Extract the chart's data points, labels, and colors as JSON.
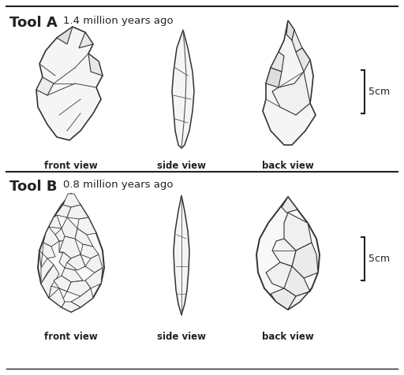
{
  "background_color": "#ffffff",
  "title_a": "Tool A",
  "subtitle_a": "1.4 million years ago",
  "title_b": "Tool B",
  "subtitle_b": "0.8 million years ago",
  "label_front": "front view",
  "label_side": "side view",
  "label_back": "back view",
  "scale_label": "5cm",
  "title_fontsize": 13,
  "subtitle_fontsize": 9.5,
  "label_fontsize": 8.5,
  "divider_color": "#222222",
  "text_color": "#222222",
  "line_color": "#333333",
  "fill_color": "#ffffff",
  "sketch_color": "#555555"
}
